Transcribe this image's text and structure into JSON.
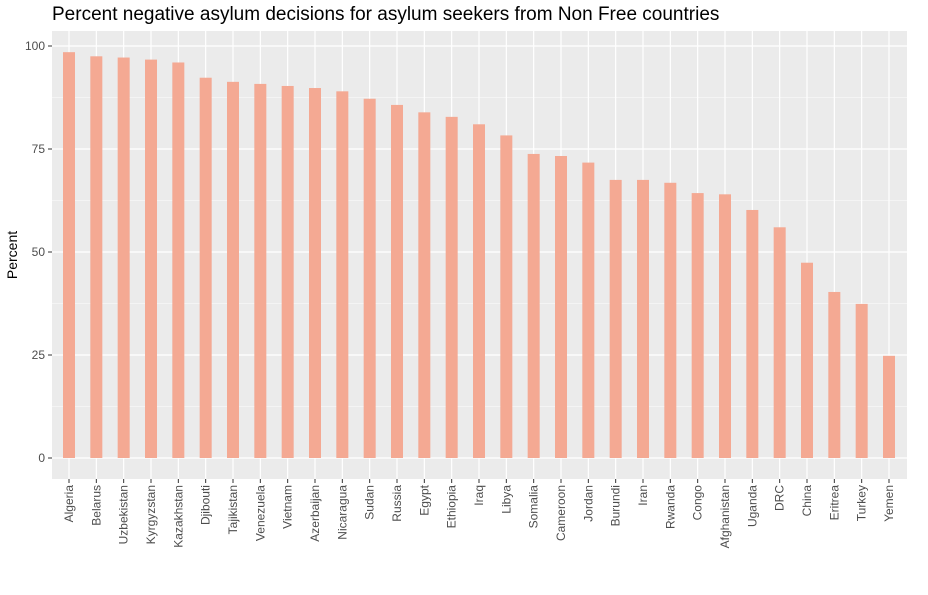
{
  "chart_data": {
    "type": "bar",
    "title": "Percent negative asylum decisions for asylum seekers from Non Free countries",
    "xlabel": "",
    "ylabel": "Percent",
    "ylim": [
      0,
      100
    ],
    "yticks": [
      0,
      25,
      50,
      75,
      100
    ],
    "grid": true,
    "bar_color": "#f4a993",
    "panel_color": "#ebebeb",
    "categories": [
      "Algeria",
      "Belarus",
      "Uzbekistan",
      "Kyrgyzstan",
      "Kazakhstan",
      "Djibouti",
      "Tajikistan",
      "Venezuela",
      "Vietnam",
      "Azerbaijan",
      "Nicaragua",
      "Sudan",
      "Russia",
      "Egypt",
      "Ethiopia",
      "Iraq",
      "Libya",
      "Somalia",
      "Cameroon",
      "Jordan",
      "Burundi",
      "Iran",
      "Rwanda",
      "Congo",
      "Afghanistan",
      "Uganda",
      "DRC",
      "China",
      "Eritrea",
      "Turkey",
      "Yemen"
    ],
    "values": [
      98.5,
      97.5,
      97.2,
      96.7,
      96.0,
      92.3,
      91.3,
      90.8,
      90.3,
      89.8,
      89.0,
      87.2,
      85.7,
      83.9,
      82.8,
      81.0,
      78.3,
      73.8,
      73.3,
      71.7,
      67.5,
      67.5,
      66.8,
      64.3,
      64.0,
      60.2,
      56.0,
      47.4,
      40.3,
      37.4,
      24.8
    ]
  }
}
